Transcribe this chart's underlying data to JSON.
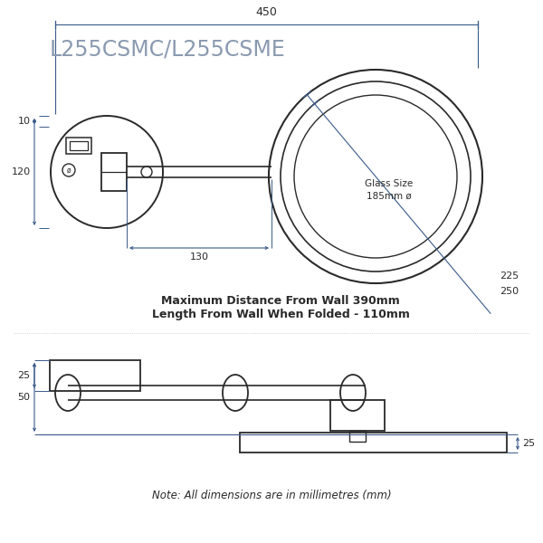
{
  "title": "L255CSMC/L255CSME",
  "bg_color": "#ffffff",
  "draw_color": "#2a2a2a",
  "dim_color": "#3a5a8a",
  "text_color": "#2a2a2a",
  "title_color": "#8a9ab0",
  "note_text": "Note: All dimensions are in millimetres (mm)",
  "info_text1": "Maximum Distance From Wall 390mm",
  "info_text2": "Length From Wall When Folded - 110mm",
  "glass_size_text": "Glass Size\n185mm ø",
  "dim_450": "450",
  "dim_120": "120",
  "dim_10": "10",
  "dim_130": "130",
  "dim_225": "225",
  "dim_250": "250",
  "dim_25a": "25",
  "dim_50": "50",
  "dim_25b": "25"
}
